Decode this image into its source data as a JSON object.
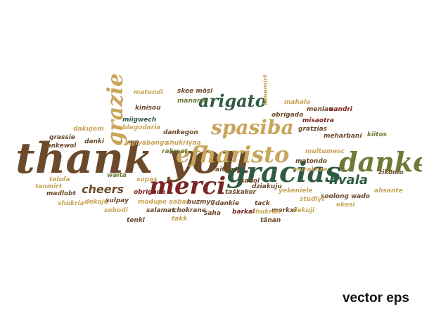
{
  "colors": {
    "brown": "#6b4a2b",
    "tan": "#c8a55a",
    "green": "#2f5a44",
    "red": "#7a2424",
    "olive": "#6e7a35",
    "khaki": "#a89a55"
  },
  "words": [
    {
      "text": "thank you",
      "color": "brown"
    },
    {
      "text": "efharisto",
      "color": "tan"
    },
    {
      "text": "danke",
      "color": "olive"
    },
    {
      "text": "gracias",
      "color": "green"
    },
    {
      "text": "merci",
      "color": "red"
    },
    {
      "text": "spasiba",
      "color": "tan"
    },
    {
      "text": "arigato",
      "color": "green"
    },
    {
      "text": "grazie",
      "color": "tan"
    },
    {
      "text": "cheers",
      "color": "brown"
    },
    {
      "text": "hvala",
      "color": "green"
    },
    {
      "text": "skee môsi",
      "color": "brown"
    },
    {
      "text": "manana",
      "color": "olive"
    },
    {
      "text": "matondi",
      "color": "tan"
    },
    {
      "text": "kinisou",
      "color": "brown"
    },
    {
      "text": "miigwech",
      "color": "green"
    },
    {
      "text": "blagodaria",
      "color": "tan"
    },
    {
      "text": "tanemirt",
      "color": "tan"
    },
    {
      "text": "mahalo",
      "color": "tan"
    },
    {
      "text": "obrigado",
      "color": "brown"
    },
    {
      "text": "menlau",
      "color": "brown"
    },
    {
      "text": "nandri",
      "color": "red"
    },
    {
      "text": "misaotra",
      "color": "red"
    },
    {
      "text": "gratzias",
      "color": "brown"
    },
    {
      "text": "kiitos",
      "color": "olive"
    },
    {
      "text": "dakujem",
      "color": "tan"
    },
    {
      "text": "grassie",
      "color": "brown"
    },
    {
      "text": "dankewol",
      "color": "brown"
    },
    {
      "text": "danki",
      "color": "brown"
    },
    {
      "text": "dankegon",
      "color": "brown"
    },
    {
      "text": "shukriyaa",
      "color": "tan"
    },
    {
      "text": "ngiyabonga",
      "color": "tan"
    },
    {
      "text": "rahmat",
      "color": "olive"
    },
    {
      "text": "meharbani",
      "color": "brown"
    },
    {
      "text": "multumesc",
      "color": "tan"
    },
    {
      "text": "matondo",
      "color": "brown"
    },
    {
      "text": "murakoze",
      "color": "tan"
    },
    {
      "text": "zikomo",
      "color": "brown"
    },
    {
      "text": "ahsante",
      "color": "tan"
    },
    {
      "text": "soolong wado",
      "color": "brown"
    },
    {
      "text": "tanmirt",
      "color": "tan"
    },
    {
      "text": "talofa",
      "color": "tan"
    },
    {
      "text": "madlobt",
      "color": "brown"
    },
    {
      "text": "waita",
      "color": "olive"
    },
    {
      "text": "shukria",
      "color": "tan"
    },
    {
      "text": "dekoju",
      "color": "tan"
    },
    {
      "text": "obrigada",
      "color": "red"
    },
    {
      "text": "supas",
      "color": "tan"
    },
    {
      "text": "sulpay",
      "color": "brown"
    },
    {
      "text": "sobodi",
      "color": "tan"
    },
    {
      "text": "modupe",
      "color": "tan"
    },
    {
      "text": "salamat",
      "color": "brown"
    },
    {
      "text": "chokrane",
      "color": "brown"
    },
    {
      "text": "aabar",
      "color": "tan"
    },
    {
      "text": "buzmyg",
      "color": "brown"
    },
    {
      "text": "tenki",
      "color": "brown"
    },
    {
      "text": "takk",
      "color": "tan"
    },
    {
      "text": "saha",
      "color": "brown"
    },
    {
      "text": "sadol",
      "color": "brown"
    },
    {
      "text": "taškakor",
      "color": "brown"
    },
    {
      "text": "tack",
      "color": "brown"
    },
    {
      "text": "merkxi",
      "color": "brown"
    },
    {
      "text": "dziakuju",
      "color": "brown"
    },
    {
      "text": "yekeniele",
      "color": "tan"
    },
    {
      "text": "studiyt",
      "color": "tan"
    },
    {
      "text": "barkal",
      "color": "red"
    },
    {
      "text": "shukran",
      "color": "tan"
    },
    {
      "text": "tänan",
      "color": "brown"
    },
    {
      "text": "dekuji",
      "color": "tan"
    },
    {
      "text": "aitäh",
      "color": "brown"
    },
    {
      "text": "dankie",
      "color": "brown"
    },
    {
      "text": "ekosi",
      "color": "tan"
    }
  ],
  "footer": {
    "label": "vector eps"
  }
}
